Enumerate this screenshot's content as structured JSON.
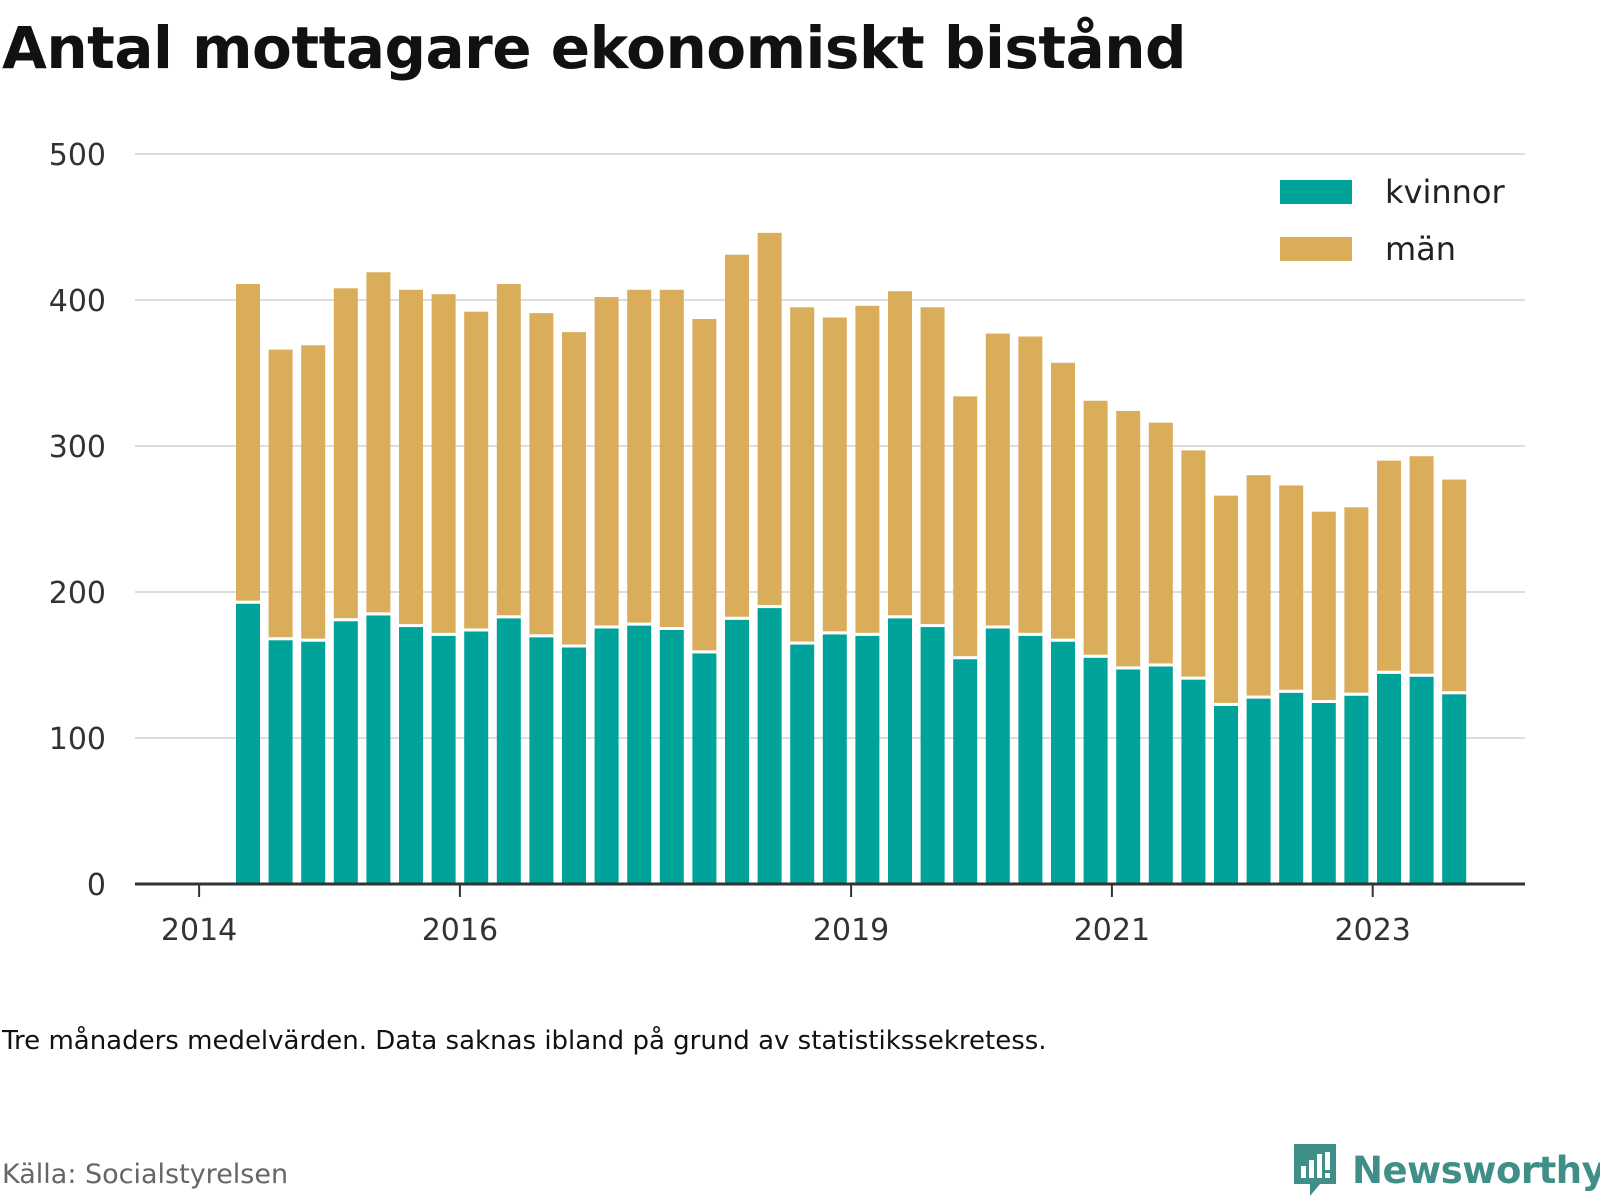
{
  "title": "Antal mottagare ekonomiskt bistånd",
  "note": "Tre månaders medelvärden. Data saknas ibland på grund av statistikssekretess.",
  "source": "Källa: Socialstyrelsen",
  "brand": {
    "name": "Newsworthy",
    "color": "#3f8f88",
    "icon": "newsworthy-logo-icon"
  },
  "colors": {
    "kvinnor": "#00a39a",
    "man": "#d9ad5a",
    "grid": "#dddddd",
    "axis": "#333333"
  },
  "chart_data": {
    "type": "bar",
    "stacked": true,
    "title": "Antal mottagare ekonomiskt bistånd",
    "xlabel": "",
    "ylabel": "",
    "ylim": [
      0,
      500
    ],
    "yticks": [
      0,
      100,
      200,
      300,
      400,
      500
    ],
    "xticks": [
      "2014",
      "2016",
      "2019",
      "2021",
      "2023"
    ],
    "grid": true,
    "legend_position": "top-right",
    "categories": [
      "2014 Q2",
      "2014 Q3",
      "2014 Q4",
      "2015 Q1",
      "2015 Q2",
      "2015 Q3",
      "2015 Q4",
      "2016 Q1",
      "2016 Q2",
      "2016 Q3",
      "2016 Q4",
      "2017 Q1",
      "2017 Q2",
      "2017 Q3",
      "2017 Q4",
      "2018 Q1",
      "2018 Q2",
      "2018 Q3",
      "2018 Q4",
      "2019 Q1",
      "2019 Q2",
      "2019 Q3",
      "2019 Q4",
      "2020 Q1",
      "2020 Q2",
      "2020 Q3",
      "2020 Q4",
      "2021 Q1",
      "2021 Q2",
      "2021 Q3",
      "2021 Q4",
      "2022 Q1",
      "2022 Q2",
      "2022 Q3",
      "2022 Q4",
      "2023 Q1",
      "2023 Q2",
      "2023 Q3"
    ],
    "series": [
      {
        "name": "kvinnor",
        "values": [
          192,
          167,
          166,
          180,
          184,
          176,
          170,
          173,
          182,
          169,
          162,
          175,
          177,
          174,
          158,
          181,
          189,
          164,
          171,
          170,
          182,
          176,
          154,
          175,
          170,
          166,
          155,
          147,
          149,
          140,
          122,
          127,
          131,
          124,
          129,
          144,
          142,
          130
        ]
      },
      {
        "name": "män",
        "values": [
          219,
          199,
          203,
          228,
          235,
          231,
          234,
          219,
          229,
          222,
          216,
          227,
          230,
          233,
          229,
          250,
          257,
          231,
          217,
          226,
          224,
          219,
          180,
          202,
          205,
          191,
          176,
          177,
          167,
          157,
          144,
          153,
          142,
          131,
          129,
          146,
          151,
          147
        ]
      }
    ]
  }
}
